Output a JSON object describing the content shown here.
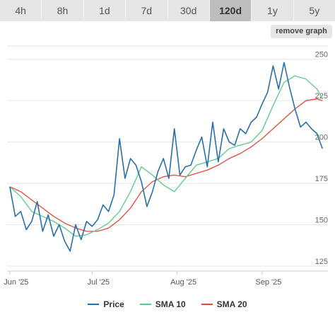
{
  "range_tabs": [
    {
      "label": "4h"
    },
    {
      "label": "8h"
    },
    {
      "label": "1d"
    },
    {
      "label": "7d"
    },
    {
      "label": "30d"
    },
    {
      "label": "120d",
      "active": true
    },
    {
      "label": "1y"
    },
    {
      "label": "5y"
    }
  ],
  "remove_button": "remove graph",
  "chart_data": {
    "type": "line",
    "x_ticks": [
      "Jun '25",
      "Jul '25",
      "Aug '25",
      "Sep '25"
    ],
    "x_tick_days": [
      0,
      30,
      61,
      92
    ],
    "y_ticks": [
      125,
      150,
      175,
      200,
      225,
      250
    ],
    "ylim": [
      122,
      258
    ],
    "xlim": [
      -1,
      116
    ],
    "grid": true,
    "legend_position": "bottom",
    "series": [
      {
        "name": "Price",
        "color": "#2a6fa8",
        "x": [
          0,
          2,
          4,
          6,
          8,
          10,
          12,
          14,
          16,
          18,
          20,
          22,
          24,
          26,
          28,
          30,
          32,
          34,
          36,
          38,
          40,
          42,
          44,
          46,
          48,
          50,
          52,
          54,
          56,
          58,
          60,
          62,
          64,
          66,
          68,
          70,
          72,
          74,
          76,
          78,
          80,
          82,
          84,
          86,
          88,
          90,
          92,
          94,
          96,
          98,
          100,
          102,
          104,
          106,
          108,
          110,
          112,
          114
        ],
        "values": [
          173,
          155,
          158,
          147,
          152,
          164,
          146,
          156,
          143,
          150,
          140,
          134,
          150,
          141,
          152,
          149,
          153,
          162,
          158,
          168,
          202,
          178,
          190,
          186,
          176,
          161,
          170,
          182,
          190,
          178,
          208,
          180,
          185,
          186,
          195,
          203,
          185,
          212,
          188,
          208,
          200,
          198,
          208,
          205,
          212,
          215,
          223,
          230,
          246,
          232,
          248,
          233,
          220,
          209,
          212,
          208,
          205,
          196
        ]
      },
      {
        "name": "SMA 10",
        "color": "#5cc98a",
        "x": [
          0,
          4,
          8,
          12,
          16,
          20,
          24,
          28,
          32,
          36,
          40,
          44,
          48,
          52,
          56,
          60,
          64,
          68,
          72,
          76,
          80,
          84,
          88,
          92,
          96,
          100,
          104,
          108,
          112,
          114
        ],
        "values": [
          173,
          167,
          158,
          155,
          152,
          148,
          143,
          144,
          147,
          151,
          158,
          170,
          185,
          180,
          174,
          170,
          178,
          186,
          188,
          190,
          196,
          198,
          200,
          207,
          222,
          236,
          240,
          238,
          232,
          226
        ]
      },
      {
        "name": "SMA 20",
        "color": "#e04b3c",
        "x": [
          0,
          4,
          8,
          12,
          16,
          20,
          24,
          28,
          32,
          36,
          40,
          44,
          48,
          52,
          56,
          60,
          64,
          68,
          72,
          76,
          80,
          84,
          88,
          92,
          96,
          100,
          104,
          108,
          112,
          114
        ],
        "values": [
          173,
          170,
          165,
          160,
          155,
          151,
          148,
          146,
          146,
          148,
          153,
          160,
          170,
          176,
          179,
          180,
          179,
          181,
          183,
          186,
          190,
          193,
          197,
          202,
          208,
          214,
          220,
          225,
          226,
          225
        ]
      }
    ]
  }
}
